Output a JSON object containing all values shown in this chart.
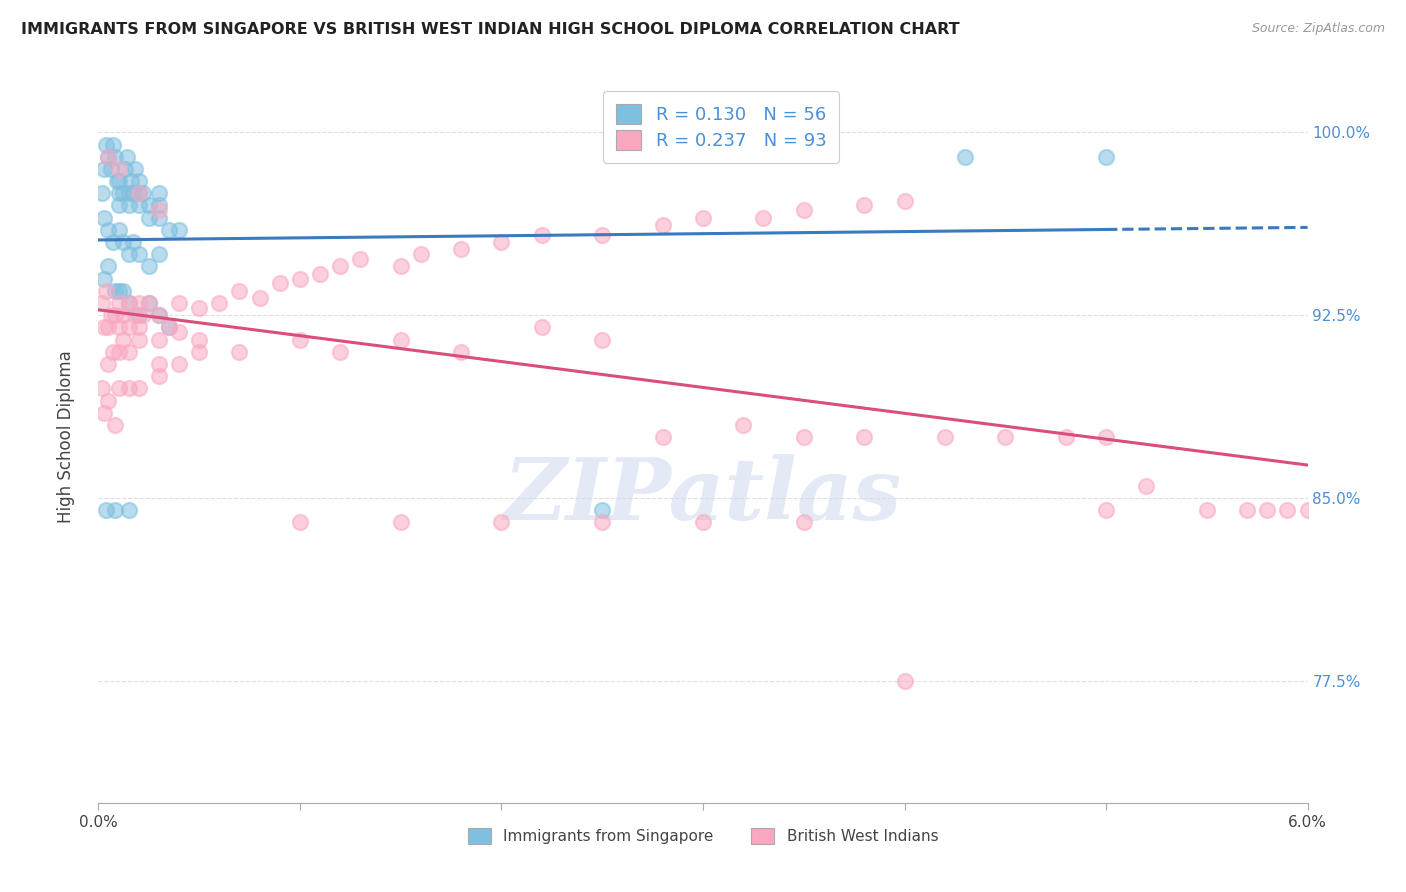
{
  "title": "IMMIGRANTS FROM SINGAPORE VS BRITISH WEST INDIAN HIGH SCHOOL DIPLOMA CORRELATION CHART",
  "source": "Source: ZipAtlas.com",
  "ylabel": "High School Diploma",
  "ytick_vals": [
    0.775,
    0.85,
    0.925,
    1.0
  ],
  "ytick_labels": [
    "77.5%",
    "85.0%",
    "92.5%",
    "100.0%"
  ],
  "xmin": 0.0,
  "xmax": 0.06,
  "ymin": 0.725,
  "ymax": 1.025,
  "legend_blue_r": "R = 0.130",
  "legend_blue_n": "N = 56",
  "legend_pink_r": "R = 0.237",
  "legend_pink_n": "N = 93",
  "legend_label_blue": "Immigrants from Singapore",
  "legend_label_pink": "British West Indians",
  "blue_color": "#7fbfdf",
  "pink_color": "#f9a8c0",
  "trend_blue_color": "#3a7abf",
  "trend_pink_color": "#d94f7a",
  "blue_scatter_x": [
    0.0002,
    0.0003,
    0.0004,
    0.0005,
    0.0006,
    0.0007,
    0.0008,
    0.0009,
    0.001,
    0.001,
    0.001,
    0.0012,
    0.0013,
    0.0014,
    0.0015,
    0.0015,
    0.0016,
    0.0017,
    0.0018,
    0.002,
    0.002,
    0.002,
    0.0022,
    0.0025,
    0.0025,
    0.003,
    0.003,
    0.003,
    0.0035,
    0.004,
    0.0003,
    0.0005,
    0.0007,
    0.001,
    0.0012,
    0.0015,
    0.0017,
    0.002,
    0.0025,
    0.003,
    0.0003,
    0.0005,
    0.0008,
    0.001,
    0.0012,
    0.0015,
    0.002,
    0.0025,
    0.003,
    0.0035,
    0.0004,
    0.0008,
    0.0015,
    0.025,
    0.043,
    0.05
  ],
  "blue_scatter_y": [
    0.975,
    0.985,
    0.995,
    0.99,
    0.985,
    0.995,
    0.99,
    0.98,
    0.975,
    0.97,
    0.98,
    0.975,
    0.985,
    0.99,
    0.975,
    0.97,
    0.98,
    0.975,
    0.985,
    0.975,
    0.97,
    0.98,
    0.975,
    0.965,
    0.97,
    0.975,
    0.97,
    0.965,
    0.96,
    0.96,
    0.965,
    0.96,
    0.955,
    0.96,
    0.955,
    0.95,
    0.955,
    0.95,
    0.945,
    0.95,
    0.94,
    0.945,
    0.935,
    0.935,
    0.935,
    0.93,
    0.925,
    0.93,
    0.925,
    0.92,
    0.845,
    0.845,
    0.845,
    0.845,
    0.99,
    0.99
  ],
  "pink_scatter_x": [
    0.0002,
    0.0003,
    0.0004,
    0.0005,
    0.0005,
    0.0006,
    0.0007,
    0.0008,
    0.001,
    0.001,
    0.001,
    0.0012,
    0.0012,
    0.0015,
    0.0015,
    0.0015,
    0.0018,
    0.002,
    0.002,
    0.002,
    0.0022,
    0.0025,
    0.003,
    0.003,
    0.003,
    0.0035,
    0.004,
    0.004,
    0.005,
    0.005,
    0.006,
    0.007,
    0.008,
    0.009,
    0.01,
    0.011,
    0.012,
    0.013,
    0.015,
    0.016,
    0.018,
    0.02,
    0.022,
    0.025,
    0.028,
    0.03,
    0.033,
    0.035,
    0.038,
    0.04,
    0.0002,
    0.0003,
    0.0005,
    0.0008,
    0.001,
    0.0015,
    0.002,
    0.003,
    0.004,
    0.005,
    0.007,
    0.01,
    0.012,
    0.015,
    0.018,
    0.022,
    0.025,
    0.028,
    0.032,
    0.035,
    0.038,
    0.042,
    0.045,
    0.048,
    0.05,
    0.052,
    0.055,
    0.057,
    0.058,
    0.059,
    0.0005,
    0.001,
    0.002,
    0.003,
    0.01,
    0.015,
    0.02,
    0.025,
    0.03,
    0.035,
    0.04,
    0.05,
    0.06
  ],
  "pink_scatter_y": [
    0.93,
    0.92,
    0.935,
    0.92,
    0.905,
    0.925,
    0.91,
    0.925,
    0.92,
    0.91,
    0.93,
    0.925,
    0.915,
    0.93,
    0.92,
    0.91,
    0.925,
    0.93,
    0.92,
    0.915,
    0.925,
    0.93,
    0.925,
    0.915,
    0.905,
    0.92,
    0.93,
    0.918,
    0.928,
    0.915,
    0.93,
    0.935,
    0.932,
    0.938,
    0.94,
    0.942,
    0.945,
    0.948,
    0.945,
    0.95,
    0.952,
    0.955,
    0.958,
    0.958,
    0.962,
    0.965,
    0.965,
    0.968,
    0.97,
    0.972,
    0.895,
    0.885,
    0.89,
    0.88,
    0.895,
    0.895,
    0.895,
    0.9,
    0.905,
    0.91,
    0.91,
    0.915,
    0.91,
    0.915,
    0.91,
    0.92,
    0.915,
    0.875,
    0.88,
    0.875,
    0.875,
    0.875,
    0.875,
    0.875,
    0.875,
    0.855,
    0.845,
    0.845,
    0.845,
    0.845,
    0.99,
    0.985,
    0.975,
    0.968,
    0.84,
    0.84,
    0.84,
    0.84,
    0.84,
    0.84,
    0.775,
    0.845,
    0.845
  ],
  "watermark": "ZIPatlas",
  "bg_color": "#ffffff",
  "grid_color": "#e0e0e0"
}
